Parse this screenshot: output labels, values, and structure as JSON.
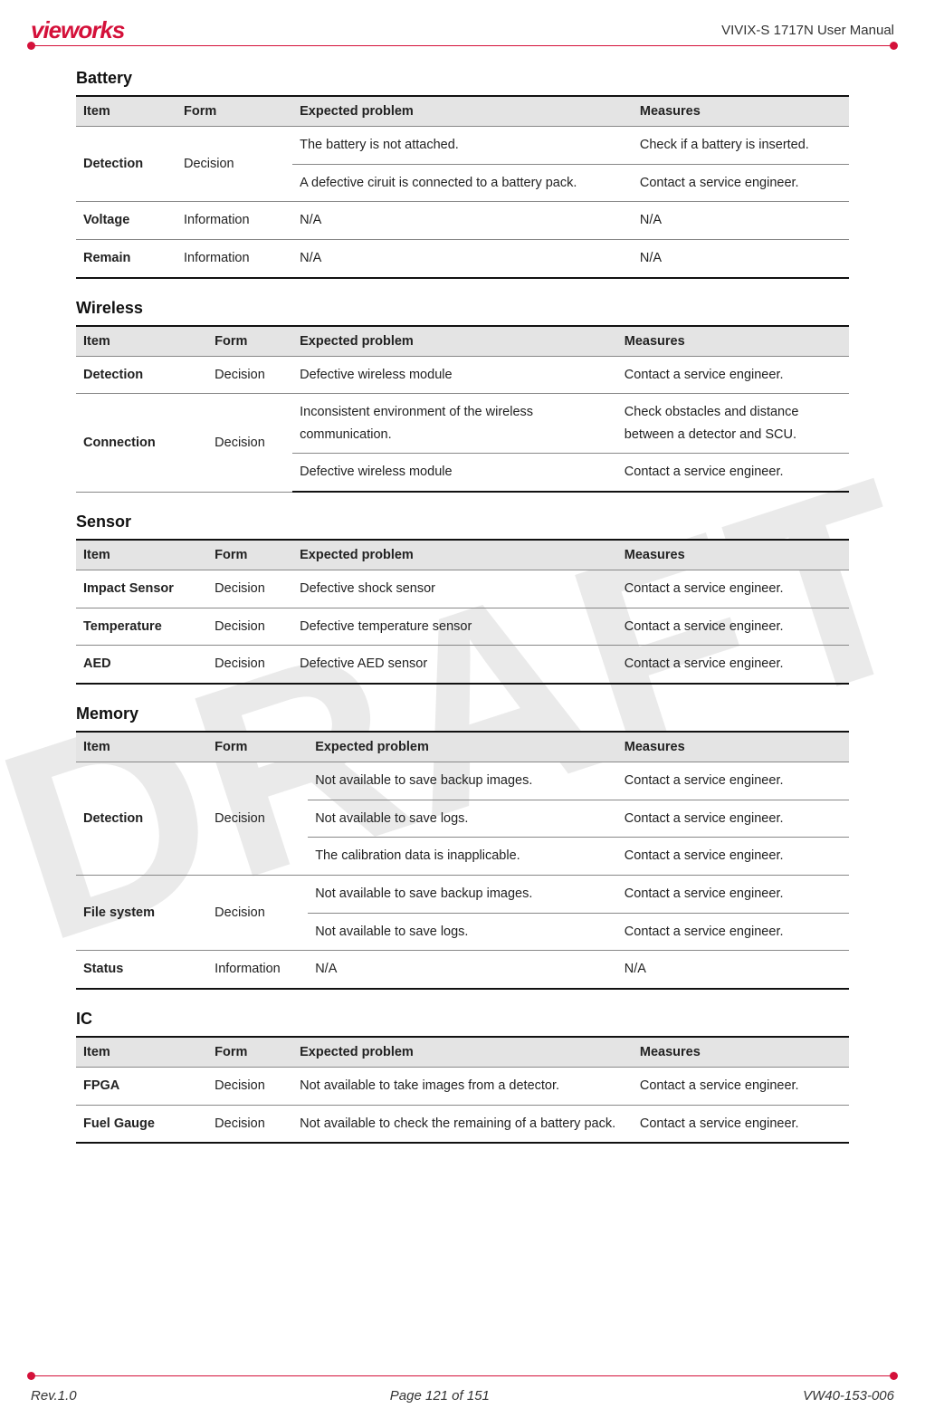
{
  "header": {
    "logo_text": "vieworks",
    "doc_title": "VIVIX-S 1717N User Manual"
  },
  "watermark": "DRAFT",
  "footer": {
    "left": "Rev.1.0",
    "center": "Page 121 of 151",
    "right": "VW40-153-006"
  },
  "columns": {
    "item": "Item",
    "form": "Form",
    "problem": "Expected problem",
    "measures": "Measures"
  },
  "battery": {
    "title": "Battery",
    "rows": [
      {
        "item": "Detection",
        "form": "Decision",
        "sub": [
          {
            "problem": "The battery is not attached.",
            "measures": "Check if a battery is inserted."
          },
          {
            "problem": "A defective ciruit is connected to a battery pack.",
            "measures": "Contact a service engineer."
          }
        ]
      },
      {
        "item": "Voltage",
        "form": "Information",
        "sub": [
          {
            "problem": "N/A",
            "measures": "N/A"
          }
        ]
      },
      {
        "item": "Remain",
        "form": "Information",
        "sub": [
          {
            "problem": "N/A",
            "measures": "N/A"
          }
        ]
      }
    ],
    "col_widths": [
      "13%",
      "15%",
      "44%",
      "28%"
    ]
  },
  "wireless": {
    "title": "Wireless",
    "rows": [
      {
        "item": "Detection",
        "form": "Decision",
        "sub": [
          {
            "problem": "Defective wireless module",
            "measures": "Contact a service engineer."
          }
        ]
      },
      {
        "item": "Connection",
        "form": "Decision",
        "sub": [
          {
            "problem": "Inconsistent environment of the wireless communication.",
            "measures": "Check obstacles and distance between a detector and SCU."
          },
          {
            "problem": "Defective wireless module",
            "measures": "Contact a service engineer."
          }
        ]
      }
    ],
    "col_widths": [
      "17%",
      "11%",
      "42%",
      "30%"
    ]
  },
  "sensor": {
    "title": "Sensor",
    "rows": [
      {
        "item": "Impact Sensor",
        "form": "Decision",
        "sub": [
          {
            "problem": "Defective shock sensor",
            "measures": "Contact a service engineer."
          }
        ]
      },
      {
        "item": "Temperature",
        "form": "Decision",
        "sub": [
          {
            "problem": "Defective temperature sensor",
            "measures": "Contact a service engineer."
          }
        ]
      },
      {
        "item": "AED",
        "form": "Decision",
        "sub": [
          {
            "problem": "Defective AED sensor",
            "measures": "Contact a service engineer."
          }
        ]
      }
    ],
    "col_widths": [
      "17%",
      "11%",
      "42%",
      "30%"
    ]
  },
  "memory": {
    "title": "Memory",
    "rows": [
      {
        "item": "Detection",
        "form": "Decision",
        "sub": [
          {
            "problem": "Not available to save backup images.",
            "measures": "Contact a service engineer."
          },
          {
            "problem": "Not available to save logs.",
            "measures": "Contact a service engineer."
          },
          {
            "problem": "The calibration data is inapplicable.",
            "measures": "Contact a service engineer."
          }
        ]
      },
      {
        "item": "File system",
        "form": "Decision",
        "sub": [
          {
            "problem": "Not available to save backup images.",
            "measures": "Contact a service engineer."
          },
          {
            "problem": "Not available to save logs.",
            "measures": "Contact a service engineer."
          }
        ]
      },
      {
        "item": "Status",
        "form": "Information",
        "sub": [
          {
            "problem": "N/A",
            "measures": "N/A"
          }
        ]
      }
    ],
    "col_widths": [
      "17%",
      "13%",
      "40%",
      "30%"
    ]
  },
  "ic": {
    "title": "IC",
    "rows": [
      {
        "item": "FPGA",
        "form": "Decision",
        "sub": [
          {
            "problem": "Not available to take images from a detector.",
            "measures": "Contact a service engineer."
          }
        ]
      },
      {
        "item": "Fuel Gauge",
        "form": "Decision",
        "sub": [
          {
            "problem": "Not available to check the remaining of a battery pack.",
            "measures": "Contact a service engineer."
          }
        ]
      }
    ],
    "col_widths": [
      "17%",
      "11%",
      "44%",
      "28%"
    ]
  }
}
